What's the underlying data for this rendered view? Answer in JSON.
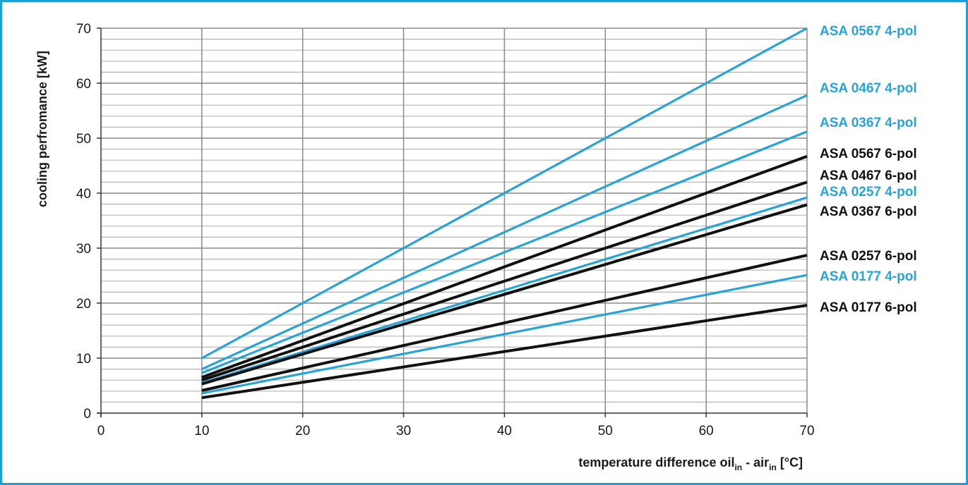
{
  "colors": {
    "frame": "#1ba1d6",
    "pol4": "#29a3d6",
    "pol6": "#111111",
    "grid_major": "#8a8a8a",
    "grid_minor": "#b5b5b5"
  },
  "chart_data": {
    "type": "line",
    "xlabel": "temperature difference oil",
    "xlabel_sub1": "in",
    "xlabel_mid": " - air",
    "xlabel_sub2": "in",
    "xlabel_end": " [°C]",
    "ylabel": "cooling perfromance [kW]",
    "xlim": [
      0,
      70
    ],
    "ylim": [
      0,
      70
    ],
    "xticks": [
      0,
      10,
      20,
      30,
      40,
      50,
      60,
      70
    ],
    "yticks": [
      0,
      10,
      20,
      30,
      40,
      50,
      60,
      70
    ],
    "yminor_step": 2,
    "grid": true,
    "legend_placement": "right-end-labels",
    "series": [
      {
        "name": "ASA 0567 4-pol",
        "group": "4-pol",
        "x": [
          10,
          70
        ],
        "y": [
          10.0,
          70.0
        ]
      },
      {
        "name": "ASA 0467 4-pol",
        "group": "4-pol",
        "x": [
          10,
          70
        ],
        "y": [
          8.0,
          57.8
        ]
      },
      {
        "name": "ASA 0367 4-pol",
        "group": "4-pol",
        "x": [
          10,
          70
        ],
        "y": [
          7.3,
          51.2
        ]
      },
      {
        "name": "ASA 0567 6-pol",
        "group": "6-pol",
        "x": [
          10,
          70
        ],
        "y": [
          6.5,
          46.7
        ]
      },
      {
        "name": "ASA 0467 6-pol",
        "group": "6-pol",
        "x": [
          10,
          70
        ],
        "y": [
          6.0,
          42.0
        ]
      },
      {
        "name": "ASA 0257 4-pol",
        "group": "4-pol",
        "x": [
          10,
          70
        ],
        "y": [
          5.5,
          39.2
        ]
      },
      {
        "name": "ASA 0367 6-pol",
        "group": "6-pol",
        "x": [
          10,
          70
        ],
        "y": [
          5.3,
          37.9
        ]
      },
      {
        "name": "ASA 0257 6-pol",
        "group": "6-pol",
        "x": [
          10,
          70
        ],
        "y": [
          4.1,
          28.7
        ]
      },
      {
        "name": "ASA 0177 4-pol",
        "group": "4-pol",
        "x": [
          10,
          70
        ],
        "y": [
          3.6,
          25.1
        ]
      },
      {
        "name": "ASA 0177 6-pol",
        "group": "6-pol",
        "x": [
          10,
          70
        ],
        "y": [
          2.8,
          19.6
        ]
      }
    ]
  }
}
